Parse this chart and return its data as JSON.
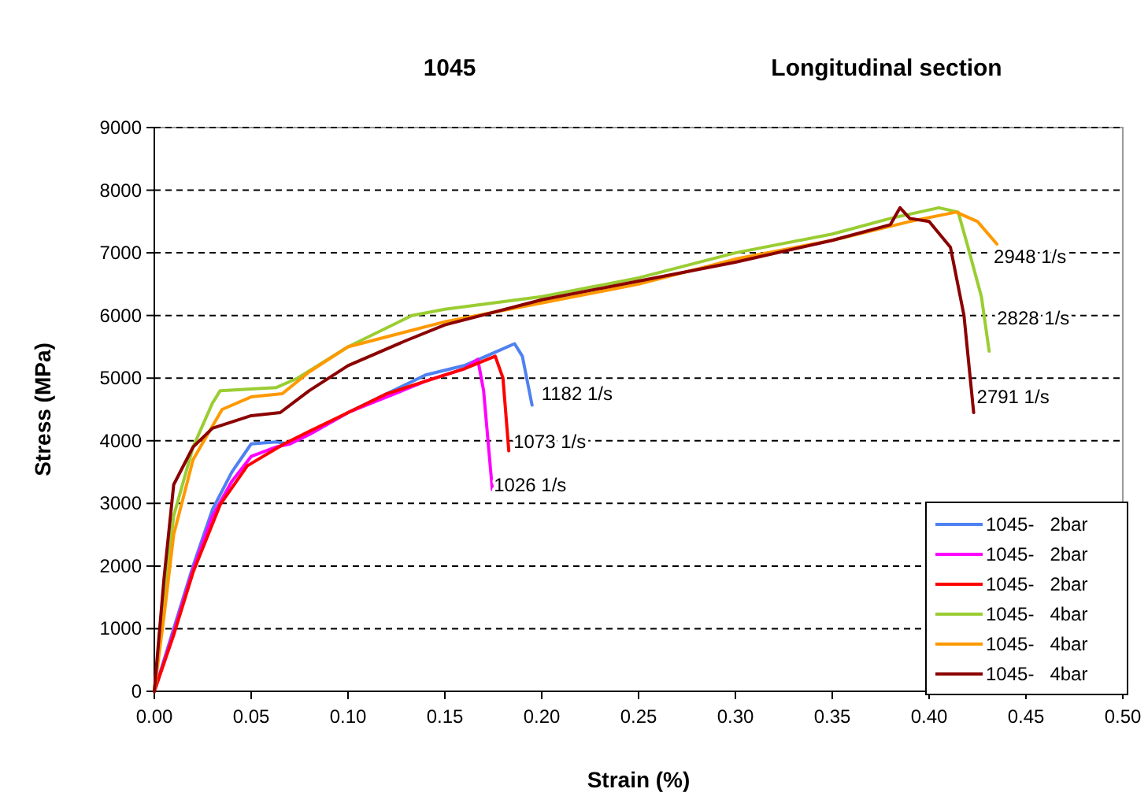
{
  "chart_data": {
    "type": "line",
    "title": "1045",
    "subtitle": "Longitudinal section",
    "xlabel": "Strain (%)",
    "ylabel": "Stress (MPa)",
    "xlim": [
      0,
      0.5
    ],
    "xticks": [
      {
        "value": 0,
        "label": "0.00"
      },
      {
        "value": 0.05,
        "label": "0.05"
      },
      {
        "value": 0.1,
        "label": "0.10"
      },
      {
        "value": 0.15,
        "label": "0.15"
      },
      {
        "value": 0.2,
        "label": "0.20"
      },
      {
        "value": 0.25,
        "label": "0.25"
      },
      {
        "value": 0.3,
        "label": "0.30"
      },
      {
        "value": 0.35,
        "label": "0.35"
      },
      {
        "value": 0.4,
        "label": "0.40"
      },
      {
        "value": 0.45,
        "label": "0.45"
      },
      {
        "value": 0.5,
        "label": "0.50"
      }
    ],
    "ylim": [
      0,
      9000
    ],
    "yticks": [
      0,
      1000,
      2000,
      3000,
      4000,
      5000,
      6000,
      7000,
      8000,
      9000
    ],
    "grid": "y",
    "legend": "bottom right",
    "marker": "none",
    "line_style": "solid",
    "series": [
      {
        "name": "1045-   2bar",
        "color": "#4f81f0",
        "x": [
          0,
          0.01,
          0.02,
          0.03,
          0.04,
          0.05,
          0.063,
          0.07,
          0.08,
          0.1,
          0.12,
          0.14,
          0.16,
          0.175,
          0.186,
          0.19,
          0.195
        ],
        "values": [
          0,
          1000,
          2000,
          2900,
          3500,
          3950,
          3980,
          3950,
          4100,
          4450,
          4750,
          5050,
          5200,
          5400,
          5550,
          5350,
          4570
        ]
      },
      {
        "name": "1045-   2bar",
        "color": "#ff00ff",
        "x": [
          0,
          0.01,
          0.02,
          0.03,
          0.04,
          0.05,
          0.063,
          0.07,
          0.08,
          0.1,
          0.12,
          0.14,
          0.16,
          0.167,
          0.17,
          0.1745
        ],
        "values": [
          0,
          950,
          1950,
          2800,
          3350,
          3750,
          3900,
          3950,
          4100,
          4450,
          4700,
          4950,
          5150,
          5300,
          4800,
          3220
        ]
      },
      {
        "name": "1045-   2bar",
        "color": "#ff0000",
        "x": [
          0,
          0.01,
          0.02,
          0.034,
          0.048,
          0.067,
          0.08,
          0.1,
          0.12,
          0.14,
          0.16,
          0.176,
          0.18,
          0.183
        ],
        "values": [
          0,
          900,
          1900,
          2980,
          3600,
          3950,
          4150,
          4450,
          4750,
          4950,
          5150,
          5350,
          5000,
          3840
        ]
      },
      {
        "name": "1045-   4bar",
        "color": "#9acd32",
        "x": [
          0,
          0.005,
          0.01,
          0.02,
          0.03,
          0.034,
          0.063,
          0.074,
          0.1,
          0.133,
          0.15,
          0.2,
          0.25,
          0.3,
          0.35,
          0.38,
          0.405,
          0.415,
          0.42,
          0.427,
          0.431
        ],
        "values": [
          0,
          1500,
          2800,
          3900,
          4600,
          4800,
          4850,
          5000,
          5500,
          6000,
          6100,
          6300,
          6600,
          7000,
          7300,
          7550,
          7720,
          7650,
          7100,
          6300,
          5430
        ]
      },
      {
        "name": "1045-   4bar",
        "color": "#ff9900",
        "x": [
          0,
          0.005,
          0.01,
          0.02,
          0.035,
          0.05,
          0.066,
          0.08,
          0.1,
          0.15,
          0.2,
          0.25,
          0.3,
          0.35,
          0.39,
          0.414,
          0.425,
          0.435
        ],
        "values": [
          0,
          1200,
          2500,
          3700,
          4500,
          4700,
          4750,
          5100,
          5500,
          5900,
          6200,
          6500,
          6900,
          7200,
          7500,
          7650,
          7500,
          7140
        ]
      },
      {
        "name": "1045-   4bar",
        "color": "#8b0000",
        "x": [
          0,
          0.005,
          0.01,
          0.02,
          0.03,
          0.05,
          0.065,
          0.08,
          0.1,
          0.13,
          0.15,
          0.2,
          0.25,
          0.3,
          0.35,
          0.38,
          0.385,
          0.39,
          0.4,
          0.411,
          0.418,
          0.423
        ],
        "values": [
          0,
          1800,
          3300,
          3900,
          4200,
          4400,
          4450,
          4800,
          5200,
          5600,
          5850,
          6250,
          6550,
          6850,
          7200,
          7450,
          7720,
          7550,
          7500,
          7090,
          6000,
          4450
        ]
      }
    ],
    "annotations": [
      {
        "text": "1182 1/s",
        "x": 0.195,
        "y": 4570
      },
      {
        "text": "1073 1/s",
        "x": 0.183,
        "y": 3840
      },
      {
        "text": "1026 1/s",
        "x": 0.1745,
        "y": 3220
      },
      {
        "text": "2948 1/s",
        "x": 0.435,
        "y": 7140
      },
      {
        "text": "2828 1/s",
        "x": 0.431,
        "y": 5430
      },
      {
        "text": "2791 1/s",
        "x": 0.423,
        "y": 4450
      }
    ]
  }
}
